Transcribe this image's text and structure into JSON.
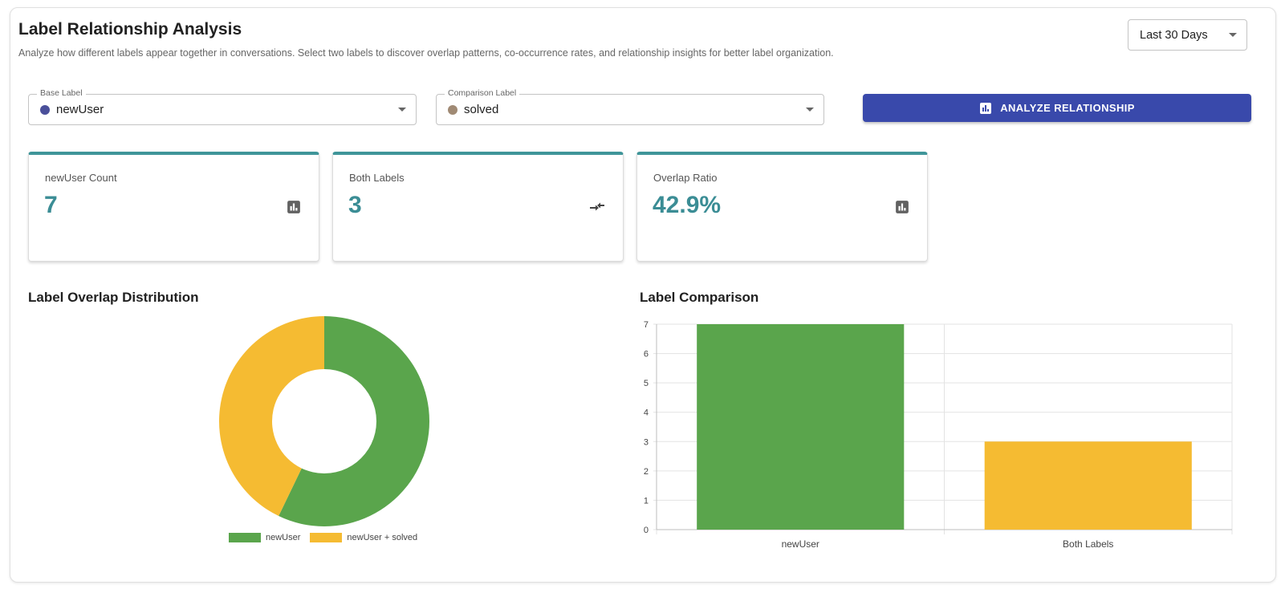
{
  "header": {
    "title": "Label Relationship Analysis",
    "subtitle": "Analyze how different labels appear together in conversations. Select two labels to discover overlap patterns, co-occurrence rates, and relationship insights for better label organization."
  },
  "range_select": {
    "value": "Last 30 Days",
    "icon": "chevron-down-icon"
  },
  "base_label": {
    "legend": "Base Label",
    "value": "newUser",
    "dot_color": "#4a4f9a"
  },
  "comparison_label": {
    "legend": "Comparison Label",
    "value": "solved",
    "dot_color": "#a08a74"
  },
  "analyze_button": {
    "label": "ANALYZE RELATIONSHIP",
    "icon": "bar-chart-icon",
    "color": "#3949ab"
  },
  "stats": [
    {
      "label": "newUser Count",
      "value": "7",
      "icon": "bar-chart-icon"
    },
    {
      "label": "Both Labels",
      "value": "3",
      "icon": "compare-arrows-icon"
    },
    {
      "label": "Overlap Ratio",
      "value": "42.9%",
      "icon": "bar-chart-icon"
    }
  ],
  "donut_section": {
    "title": "Label Overlap Distribution"
  },
  "bar_section": {
    "title": "Label Comparison"
  },
  "colors": {
    "green": "#5aa54c",
    "yellow": "#f5bb32",
    "accent": "#3b8d95"
  },
  "chart_data": [
    {
      "type": "pie",
      "title": "",
      "slices": [
        {
          "label": "newUser",
          "value": 4,
          "color": "#5aa54c"
        },
        {
          "label": "newUser + solved",
          "value": 3,
          "color": "#f5bb32"
        }
      ],
      "legend_position": "bottom"
    },
    {
      "type": "bar",
      "title": "",
      "categories": [
        "newUser",
        "Both Labels"
      ],
      "values": [
        7,
        3
      ],
      "colors": [
        "#5aa54c",
        "#f5bb32"
      ],
      "ylim": [
        0,
        7
      ],
      "yticks": [
        "0",
        "1",
        "2",
        "3",
        "4",
        "5",
        "6",
        "7"
      ],
      "grid": true
    }
  ]
}
